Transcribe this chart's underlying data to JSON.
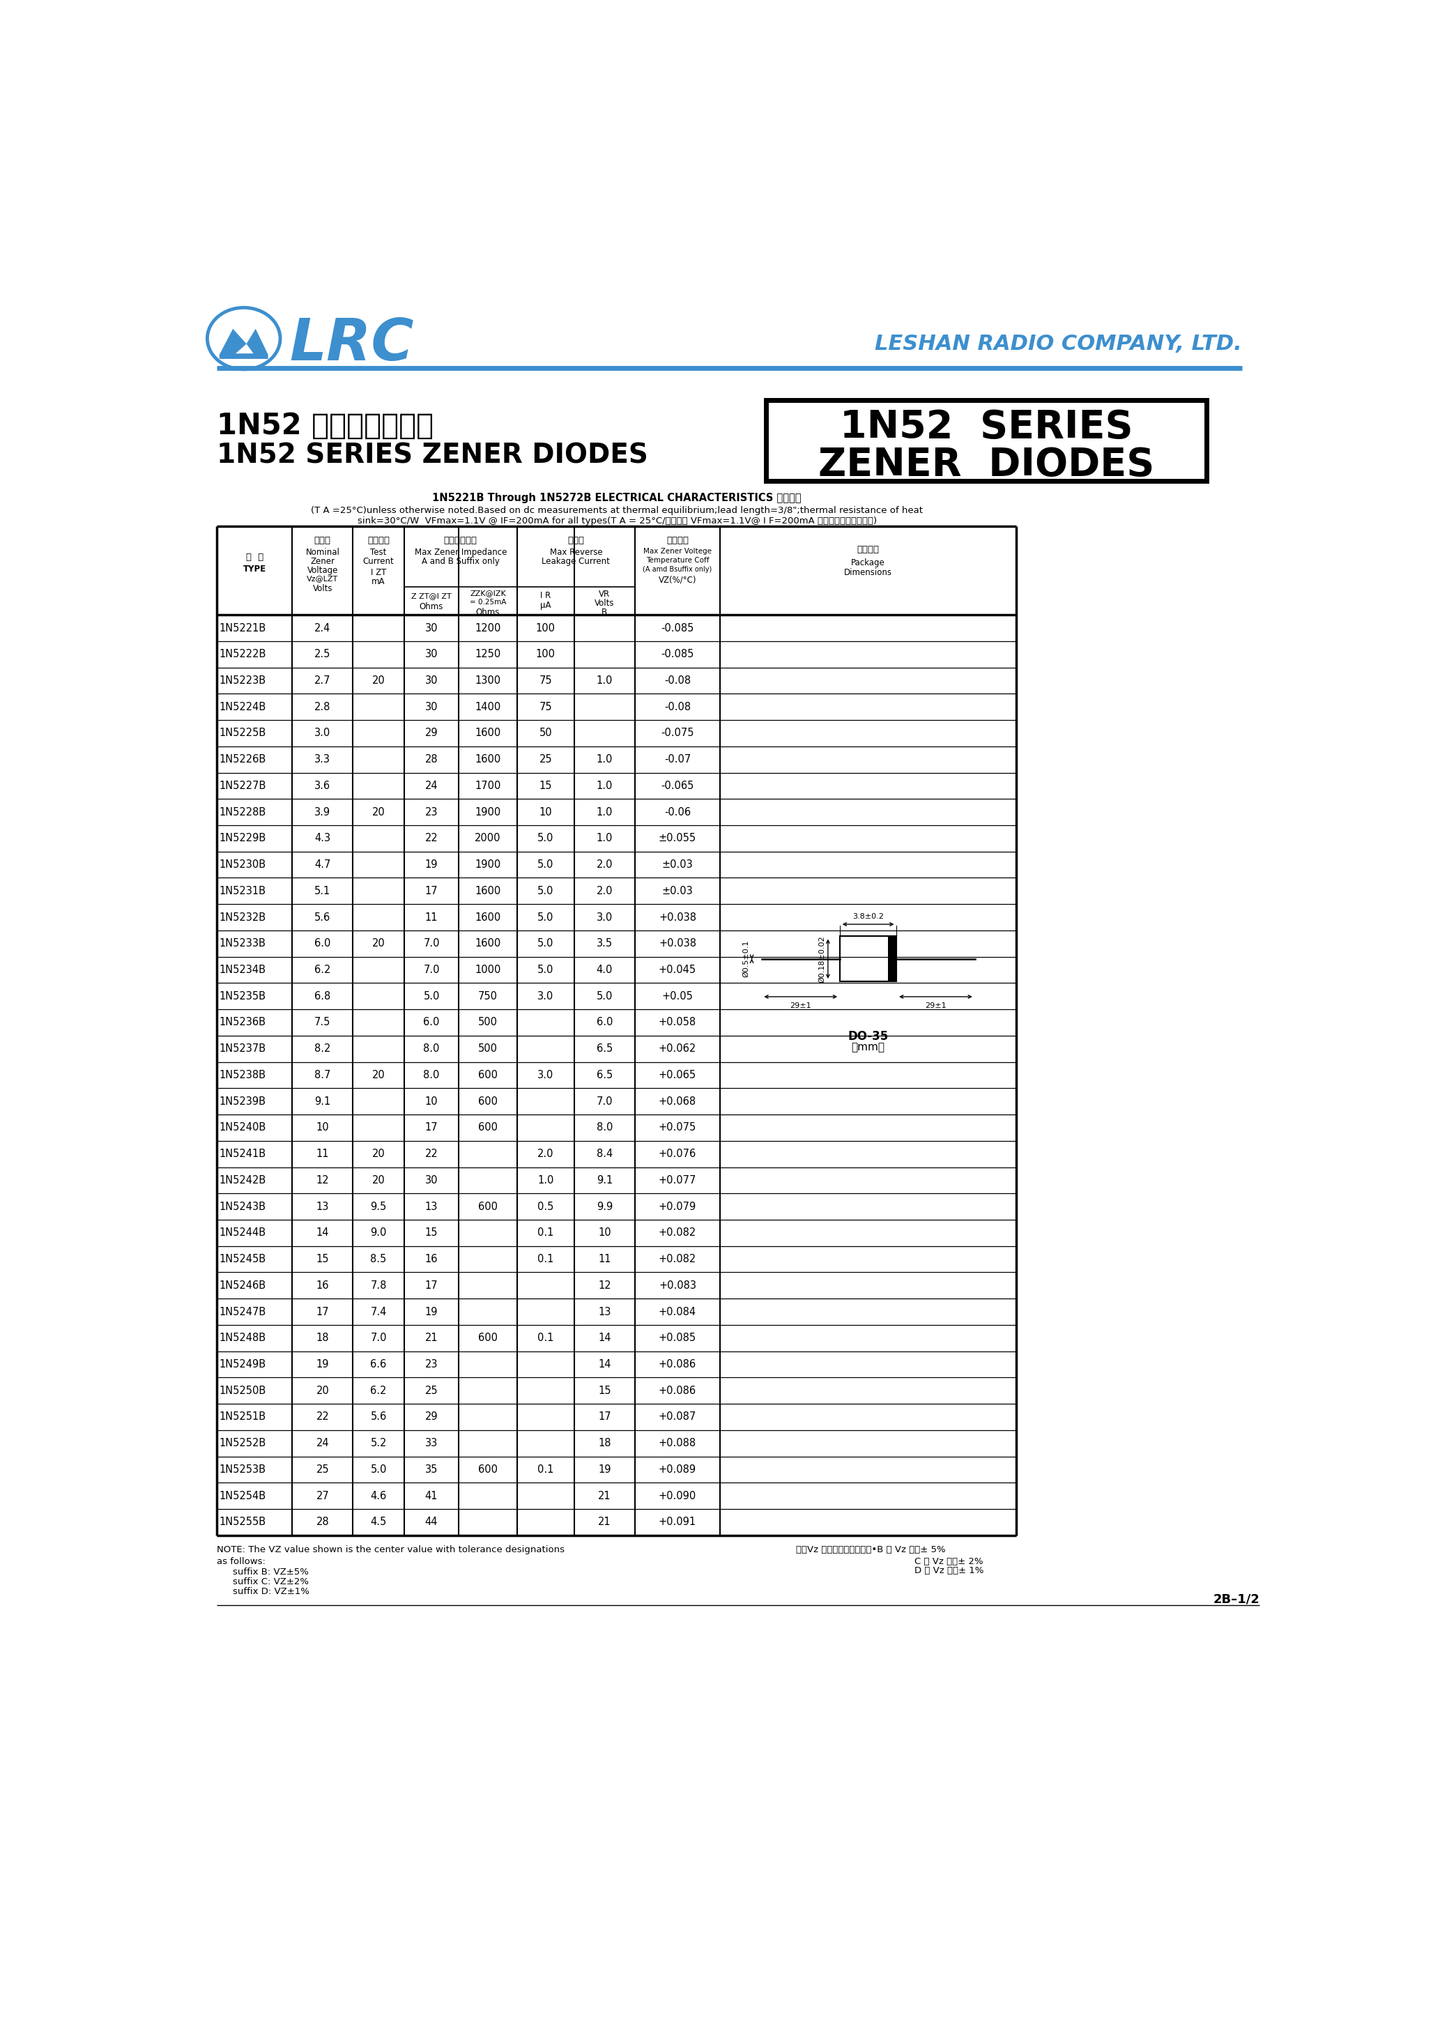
{
  "title_chinese": "1N52 系列稳压二极管",
  "title_english": "1N52 SERIES ZENER DIODES",
  "company": "LESHAN RADIO COMPANY, LTD.",
  "box_title1": "1N52  SERIES",
  "box_title2": "ZENER  DIODES",
  "note_title": "1N5221B Through 1N5272B ELECTRICAL CHARACTERISTICS 电性参数",
  "note_line1": "(T A =25°C)unless otherwise noted.Based on dc measurements at thermal equilibrium;lead length=3/8\";thermal resistance of heat",
  "note_line2": "sink=30°C/W  VFmax=1.1V @ IF=200mA for all types(T A = 25°C/所有型号 VFmax=1.1V@ I F=200mA ，其它特别说明除外。)",
  "table_data": [
    [
      "1N5221B",
      "2.4",
      "",
      "30",
      "1200",
      "100",
      "",
      "-0.085"
    ],
    [
      "1N5222B",
      "2.5",
      "",
      "30",
      "1250",
      "100",
      "",
      "-0.085"
    ],
    [
      "1N5223B",
      "2.7",
      "20",
      "30",
      "1300",
      "75",
      "1.0",
      "-0.08"
    ],
    [
      "1N5224B",
      "2.8",
      "",
      "30",
      "1400",
      "75",
      "",
      "-0.08"
    ],
    [
      "1N5225B",
      "3.0",
      "",
      "29",
      "1600",
      "50",
      "",
      "-0.075"
    ],
    [
      "1N5226B",
      "3.3",
      "",
      "28",
      "1600",
      "25",
      "1.0",
      "-0.07"
    ],
    [
      "1N5227B",
      "3.6",
      "",
      "24",
      "1700",
      "15",
      "1.0",
      "-0.065"
    ],
    [
      "1N5228B",
      "3.9",
      "20",
      "23",
      "1900",
      "10",
      "1.0",
      "-0.06"
    ],
    [
      "1N5229B",
      "4.3",
      "",
      "22",
      "2000",
      "5.0",
      "1.0",
      "±0.055"
    ],
    [
      "1N5230B",
      "4.7",
      "",
      "19",
      "1900",
      "5.0",
      "2.0",
      "±0.03"
    ],
    [
      "1N5231B",
      "5.1",
      "",
      "17",
      "1600",
      "5.0",
      "2.0",
      "±0.03"
    ],
    [
      "1N5232B",
      "5.6",
      "",
      "11",
      "1600",
      "5.0",
      "3.0",
      "+0.038"
    ],
    [
      "1N5233B",
      "6.0",
      "20",
      "7.0",
      "1600",
      "5.0",
      "3.5",
      "+0.038"
    ],
    [
      "1N5234B",
      "6.2",
      "",
      "7.0",
      "1000",
      "5.0",
      "4.0",
      "+0.045"
    ],
    [
      "1N5235B",
      "6.8",
      "",
      "5.0",
      "750",
      "3.0",
      "5.0",
      "+0.05"
    ],
    [
      "1N5236B",
      "7.5",
      "",
      "6.0",
      "500",
      "",
      "6.0",
      "+0.058"
    ],
    [
      "1N5237B",
      "8.2",
      "",
      "8.0",
      "500",
      "",
      "6.5",
      "+0.062"
    ],
    [
      "1N5238B",
      "8.7",
      "20",
      "8.0",
      "600",
      "3.0",
      "6.5",
      "+0.065"
    ],
    [
      "1N5239B",
      "9.1",
      "",
      "10",
      "600",
      "",
      "7.0",
      "+0.068"
    ],
    [
      "1N5240B",
      "10",
      "",
      "17",
      "600",
      "",
      "8.0",
      "+0.075"
    ],
    [
      "1N5241B",
      "11",
      "20",
      "22",
      "",
      "2.0",
      "8.4",
      "+0.076"
    ],
    [
      "1N5242B",
      "12",
      "20",
      "30",
      "",
      "1.0",
      "9.1",
      "+0.077"
    ],
    [
      "1N5243B",
      "13",
      "9.5",
      "13",
      "600",
      "0.5",
      "9.9",
      "+0.079"
    ],
    [
      "1N5244B",
      "14",
      "9.0",
      "15",
      "",
      "0.1",
      "10",
      "+0.082"
    ],
    [
      "1N5245B",
      "15",
      "8.5",
      "16",
      "",
      "0.1",
      "11",
      "+0.082"
    ],
    [
      "1N5246B",
      "16",
      "7.8",
      "17",
      "",
      "",
      "12",
      "+0.083"
    ],
    [
      "1N5247B",
      "17",
      "7.4",
      "19",
      "",
      "",
      "13",
      "+0.084"
    ],
    [
      "1N5248B",
      "18",
      "7.0",
      "21",
      "600",
      "0.1",
      "14",
      "+0.085"
    ],
    [
      "1N5249B",
      "19",
      "6.6",
      "23",
      "",
      "",
      "14",
      "+0.086"
    ],
    [
      "1N5250B",
      "20",
      "6.2",
      "25",
      "",
      "",
      "15",
      "+0.086"
    ],
    [
      "1N5251B",
      "22",
      "5.6",
      "29",
      "",
      "",
      "17",
      "+0.087"
    ],
    [
      "1N5252B",
      "24",
      "5.2",
      "33",
      "",
      "",
      "18",
      "+0.088"
    ],
    [
      "1N5253B",
      "25",
      "5.0",
      "35",
      "600",
      "0.1",
      "19",
      "+0.089"
    ],
    [
      "1N5254B",
      "27",
      "4.6",
      "41",
      "",
      "",
      "21",
      "+0.090"
    ],
    [
      "1N5255B",
      "28",
      "4.5",
      "44",
      "",
      "",
      "21",
      "+0.091"
    ]
  ],
  "note_bottom1": "NOTE: The VZ value shown is the center value with tolerance designations",
  "note_bottom2": "as follows:",
  "note_bottom3": "suffix B: VZ±5%",
  "note_bottom4": "suffix C: VZ±2%",
  "note_bottom5": "suffix D: VZ±1%",
  "note_cn1": "注：Vz 为稳压中心值，其中•B 型 Vz 容差± 5%",
  "note_cn2": "C 型 Vz 容差± 2%",
  "note_cn3": "D 型 Vz 容差± 1%",
  "page_num": "2B–1/2",
  "blue": "#3d8fce",
  "black": "#000000",
  "white": "#ffffff"
}
